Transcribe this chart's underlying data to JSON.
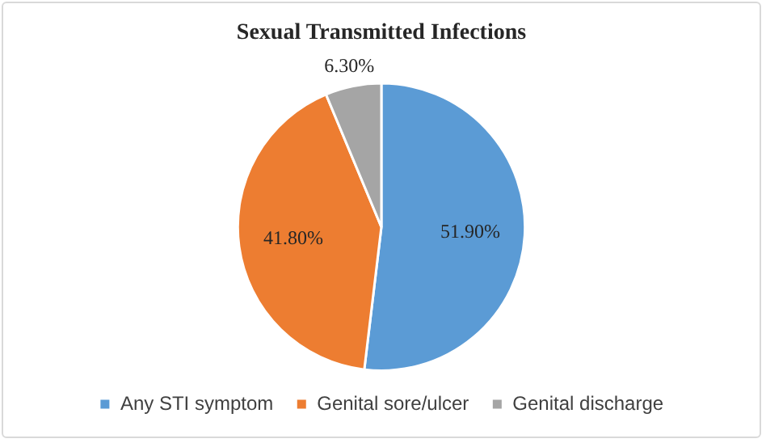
{
  "chart_data": {
    "type": "pie",
    "title": "Sexual Transmitted Infections",
    "categories": [
      "Any STI symptom",
      "Genital sore/ulcer",
      "Genital discharge"
    ],
    "values": [
      51.9,
      41.8,
      6.3
    ],
    "colors": [
      "#5b9bd5",
      "#ed7d31",
      "#a5a5a5"
    ],
    "value_labels": [
      "51.90%",
      "41.80%",
      "6.30%"
    ],
    "legend": "bottom"
  }
}
